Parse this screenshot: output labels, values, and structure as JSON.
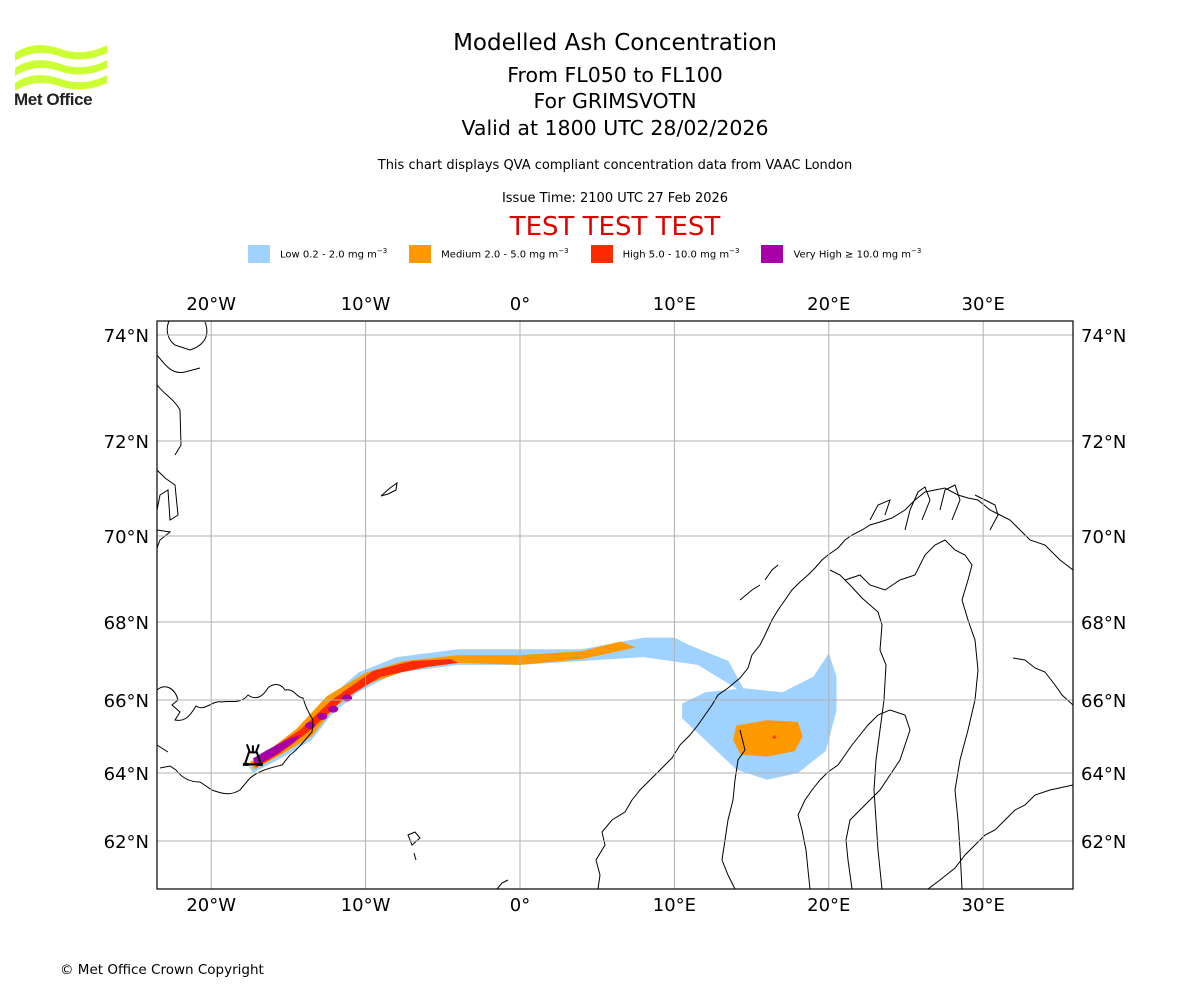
{
  "logo": {
    "name": "Met Office",
    "icon": "met-office-waves-logo",
    "color": "#ccff33"
  },
  "header": {
    "title": "Modelled Ash Concentration",
    "flight_levels": "From FL050 to FL100",
    "volcano": "For GRIMSVOTN",
    "valid_time": "Valid at 1800 UTC 28/02/2026",
    "description": "This chart displays QVA compliant concentration data from VAAC London",
    "issue_time": "Issue Time: 2100 UTC 27 Feb 2026",
    "test_banner": "TEST TEST TEST",
    "test_color": "#e00000"
  },
  "legend": [
    {
      "label": "Low 0.2 - 2.0 mg m",
      "unit_exp": "−3",
      "color": "#a0d2ff"
    },
    {
      "label": "Medium 2.0 - 5.0 mg m",
      "unit_exp": "−3",
      "color": "#ff9900"
    },
    {
      "label": "High 5.0 - 10.0 mg m",
      "unit_exp": "−3",
      "color": "#ff2a00"
    },
    {
      "label": "Very High ≥ 10.0 mg m",
      "unit_exp": "−3",
      "color": "#a600a6"
    }
  ],
  "chart_data": {
    "type": "map",
    "title": "Modelled Ash Concentration",
    "projection": "polar-stereographic-like",
    "extent": {
      "lon": [
        -23.5,
        35.8
      ],
      "lat": [
        61,
        74.3
      ]
    },
    "grid": true,
    "lon_ticks": [
      {
        "value": -20,
        "label": "20°W"
      },
      {
        "value": -10,
        "label": "10°W"
      },
      {
        "value": 0,
        "label": "0°"
      },
      {
        "value": 10,
        "label": "10°E"
      },
      {
        "value": 20,
        "label": "20°E"
      },
      {
        "value": 30,
        "label": "30°E"
      }
    ],
    "lat_ticks": [
      {
        "value": 74,
        "label": "74°N"
      },
      {
        "value": 72,
        "label": "72°N"
      },
      {
        "value": 70,
        "label": "70°N"
      },
      {
        "value": 68,
        "label": "68°N"
      },
      {
        "value": 66,
        "label": "66°N"
      },
      {
        "value": 64,
        "label": "64°N"
      },
      {
        "value": 62,
        "label": "62°N"
      }
    ],
    "volcano": {
      "name": "GRIMSVOTN",
      "lon": -17.3,
      "lat": 64.4,
      "symbol": "volcano-icon"
    },
    "ash_regions": [
      {
        "level": "Low",
        "polygon": [
          [
            -17.3,
            64.0
          ],
          [
            -15.5,
            64.4
          ],
          [
            -13.5,
            64.9
          ],
          [
            -12.2,
            65.6
          ],
          [
            -10.5,
            66.2
          ],
          [
            -8,
            66.7
          ],
          [
            -4,
            66.9
          ],
          [
            0,
            66.9
          ],
          [
            4,
            67.0
          ],
          [
            8,
            67.1
          ],
          [
            11.5,
            66.9
          ],
          [
            14,
            66.3
          ],
          [
            15,
            65.3
          ],
          [
            14.5,
            64.6
          ],
          [
            13.5,
            64.5
          ],
          [
            14,
            65.3
          ],
          [
            15,
            65.9
          ],
          [
            13.5,
            67.0
          ],
          [
            11,
            67.4
          ],
          [
            10,
            67.6
          ],
          [
            8,
            67.6
          ],
          [
            4,
            67.3
          ],
          [
            0,
            67.3
          ],
          [
            -4,
            67.3
          ],
          [
            -8,
            67.1
          ],
          [
            -10.5,
            66.7
          ],
          [
            -12.5,
            66.0
          ],
          [
            -14.5,
            65.1
          ],
          [
            -16.5,
            64.5
          ],
          [
            -17.6,
            64.2
          ]
        ]
      },
      {
        "level": "Low",
        "polygon": [
          [
            10.5,
            65.9
          ],
          [
            12,
            66.2
          ],
          [
            14.5,
            66.3
          ],
          [
            17,
            66.2
          ],
          [
            19,
            66.6
          ],
          [
            20,
            67.2
          ],
          [
            20.5,
            66.6
          ],
          [
            20.5,
            65.7
          ],
          [
            19.8,
            64.6
          ],
          [
            18,
            64.0
          ],
          [
            16,
            63.8
          ],
          [
            14,
            64.1
          ],
          [
            12,
            64.9
          ],
          [
            10.5,
            65.5
          ]
        ]
      },
      {
        "level": "Medium",
        "polygon": [
          [
            -17.2,
            64.1
          ],
          [
            -15.5,
            64.5
          ],
          [
            -13.5,
            65.0
          ],
          [
            -12,
            65.8
          ],
          [
            -10,
            66.4
          ],
          [
            -7,
            66.8
          ],
          [
            -4,
            66.95
          ],
          [
            0,
            66.9
          ],
          [
            4,
            67.05
          ],
          [
            7.5,
            67.35
          ],
          [
            6.5,
            67.5
          ],
          [
            4,
            67.25
          ],
          [
            0,
            67.15
          ],
          [
            -4,
            67.15
          ],
          [
            -7.5,
            67.0
          ],
          [
            -10,
            66.7
          ],
          [
            -12.5,
            66.1
          ],
          [
            -14.5,
            65.2
          ],
          [
            -16.5,
            64.55
          ],
          [
            -17.5,
            64.3
          ]
        ]
      },
      {
        "level": "Medium",
        "polygon": [
          [
            13.8,
            64.9
          ],
          [
            14,
            65.3
          ],
          [
            16,
            65.45
          ],
          [
            18,
            65.4
          ],
          [
            18.3,
            65.0
          ],
          [
            17.8,
            64.6
          ],
          [
            16,
            64.45
          ],
          [
            14.3,
            64.5
          ]
        ]
      },
      {
        "level": "High",
        "polygon": [
          [
            -17.1,
            64.15
          ],
          [
            -15.5,
            64.55
          ],
          [
            -13.5,
            65.2
          ],
          [
            -11.5,
            66.0
          ],
          [
            -9,
            66.6
          ],
          [
            -6,
            66.85
          ],
          [
            -4,
            66.95
          ],
          [
            -4.5,
            67.05
          ],
          [
            -7,
            67.0
          ],
          [
            -9.5,
            66.75
          ],
          [
            -12.2,
            66.0
          ],
          [
            -14.2,
            65.2
          ],
          [
            -16.3,
            64.6
          ],
          [
            -17.3,
            64.3
          ]
        ]
      },
      {
        "level": "High",
        "polygon": [
          [
            16.3,
            64.95
          ],
          [
            16.6,
            64.95
          ],
          [
            16.5,
            65.05
          ]
        ]
      },
      {
        "level": "Very High",
        "polygon": [
          [
            -17.1,
            64.2
          ],
          [
            -16,
            64.45
          ],
          [
            -14.6,
            64.85
          ],
          [
            -14.2,
            65.05
          ],
          [
            -15.2,
            64.9
          ],
          [
            -16.5,
            64.6
          ],
          [
            -17.3,
            64.4
          ]
        ]
      }
    ],
    "very_high_spots": [
      {
        "lon": -13.6,
        "lat": 65.3
      },
      {
        "lon": -12.8,
        "lat": 65.55
      },
      {
        "lon": -12.1,
        "lat": 65.75
      },
      {
        "lon": -11.2,
        "lat": 66.05
      }
    ]
  },
  "footer": {
    "copyright": "© Met Office Crown Copyright"
  }
}
